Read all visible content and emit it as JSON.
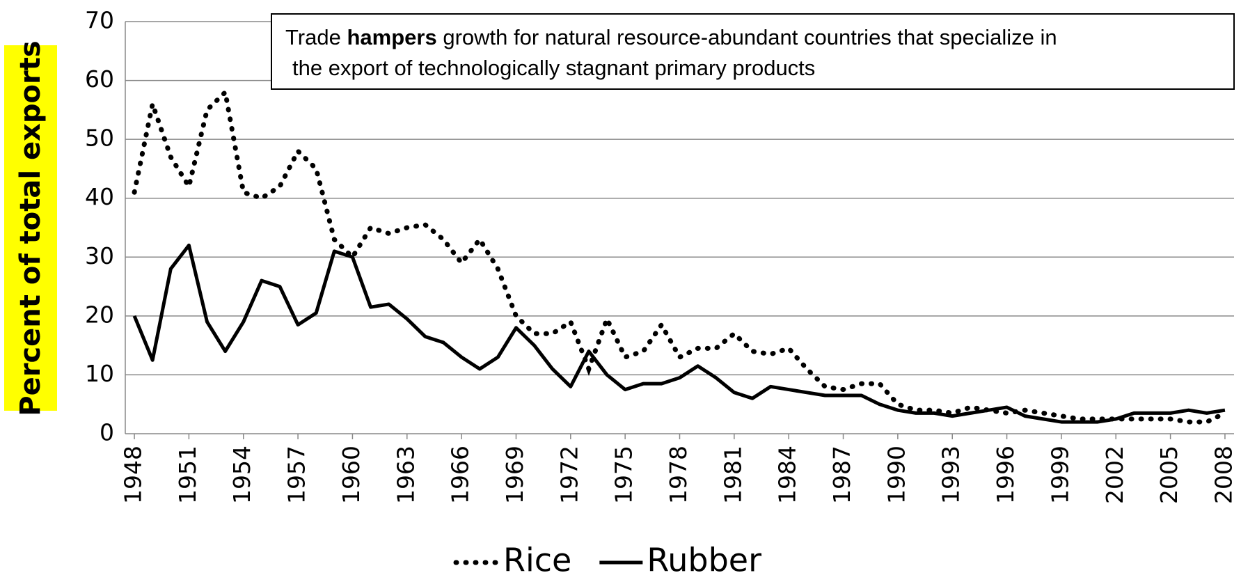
{
  "chart_data": {
    "type": "line",
    "y_label": "Percent of total exports",
    "annotation": [
      "Trade",
      "hampers",
      "growth for natural resource-abundant countries that specialize in",
      "the export of technologically stagnant primary products"
    ],
    "x": [
      1948,
      1949,
      1950,
      1951,
      1952,
      1953,
      1954,
      1955,
      1956,
      1957,
      1958,
      1959,
      1960,
      1961,
      1962,
      1963,
      1964,
      1965,
      1966,
      1967,
      1968,
      1969,
      1970,
      1971,
      1972,
      1973,
      1974,
      1975,
      1976,
      1977,
      1978,
      1979,
      1980,
      1981,
      1982,
      1983,
      1984,
      1985,
      1986,
      1987,
      1988,
      1989,
      1990,
      1991,
      1992,
      1993,
      1994,
      1995,
      1996,
      1997,
      1998,
      1999,
      2000,
      2001,
      2002,
      2003,
      2004,
      2005,
      2006,
      2007,
      2008
    ],
    "series": [
      {
        "name": "Rice",
        "color": "#000000",
        "style": "dotted",
        "values": [
          41,
          56,
          47,
          42,
          55,
          58,
          41,
          40,
          42,
          48,
          45,
          33,
          30,
          35,
          34,
          35,
          35.5,
          33,
          29,
          33,
          28,
          20,
          17,
          17,
          19,
          11,
          19.5,
          13,
          14,
          18.5,
          13,
          14.5,
          14.5,
          17,
          14,
          13.5,
          14.5,
          11,
          8,
          7.5,
          8.5,
          8.5,
          5,
          4,
          4,
          3.5,
          4.5,
          4,
          3.5,
          4,
          3.5,
          3,
          2.5,
          2.5,
          2.5,
          2.5,
          2.5,
          2.5,
          2,
          2,
          3.5
        ]
      },
      {
        "name": "Rubber",
        "color": "#000000",
        "style": "solid",
        "values": [
          20,
          12.5,
          28,
          32,
          19,
          14,
          19,
          26,
          25,
          18.5,
          20.5,
          31,
          30,
          21.5,
          22,
          19.5,
          16.5,
          15.5,
          13,
          11,
          13,
          18,
          15,
          11,
          8,
          14,
          10,
          7.5,
          8.5,
          8.5,
          9.5,
          11.5,
          9.5,
          7,
          6,
          8,
          7.5,
          7,
          6.5,
          6.5,
          6.5,
          5,
          4,
          3.5,
          3.5,
          3,
          3.5,
          4,
          4.5,
          3,
          2.5,
          2,
          2,
          2,
          2.5,
          3.5,
          3.5,
          3.5,
          4,
          3.5,
          4
        ]
      }
    ],
    "xlim": [
      1947.5,
      2008.5
    ],
    "xticks": [
      1948,
      1951,
      1954,
      1957,
      1960,
      1963,
      1966,
      1969,
      1972,
      1975,
      1978,
      1981,
      1984,
      1987,
      1990,
      1993,
      1996,
      1999,
      2002,
      2005,
      2008
    ],
    "ylim": [
      0,
      70
    ],
    "yticks": [
      0,
      10,
      20,
      30,
      40,
      50,
      60,
      70
    ],
    "grid": true,
    "legend": "bottom"
  }
}
